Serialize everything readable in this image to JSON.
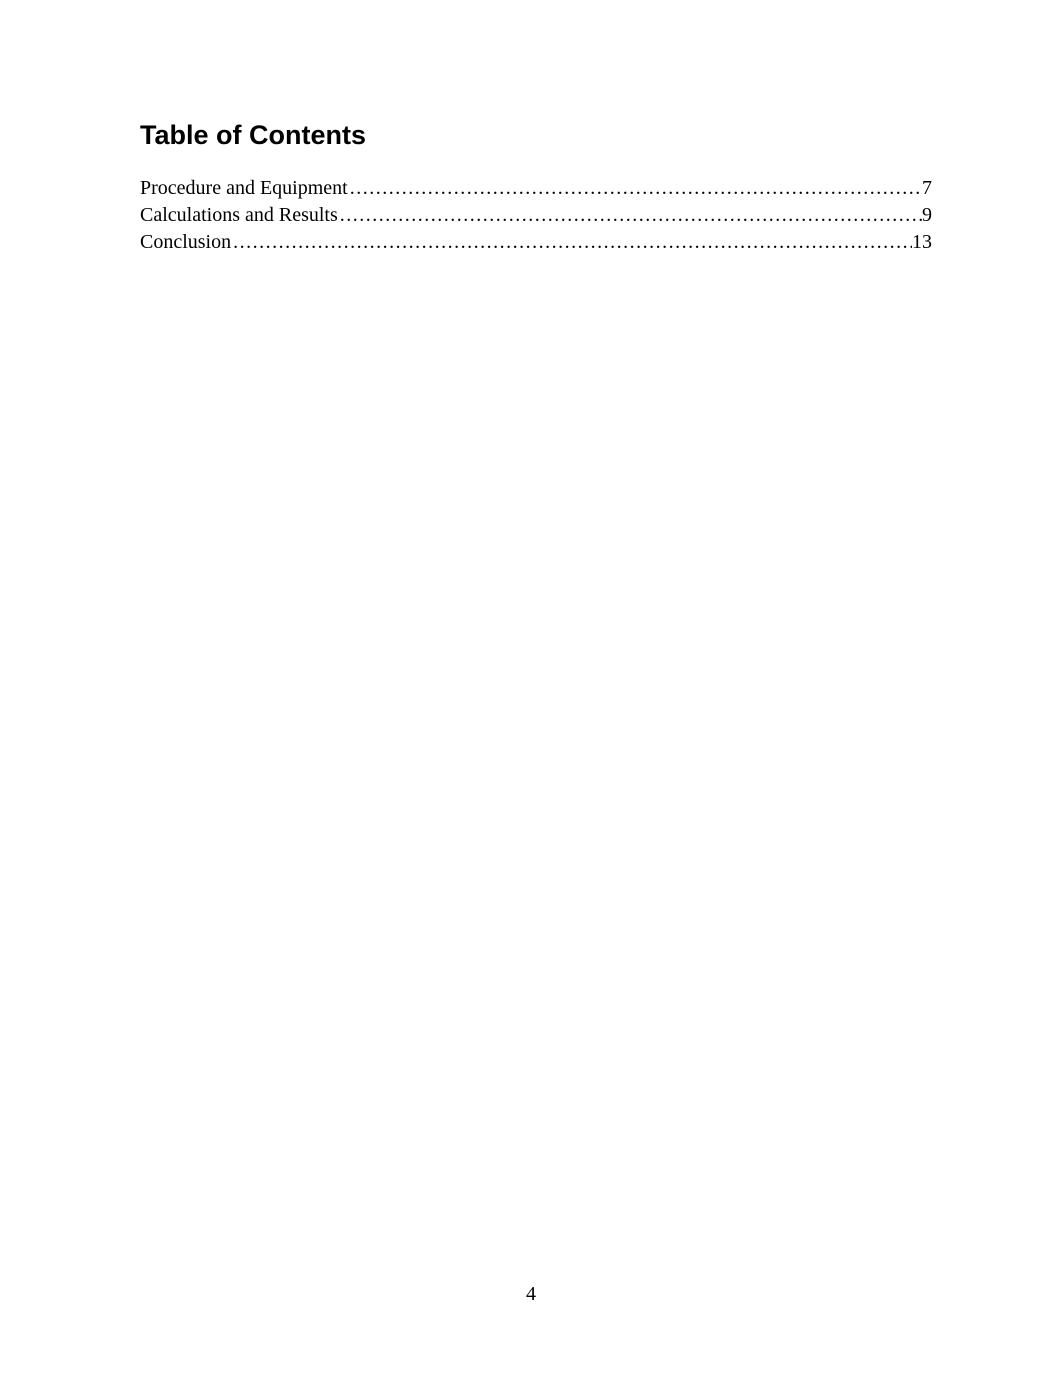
{
  "toc": {
    "title": "Table of Contents",
    "title_font_family": "Arial, Helvetica, sans-serif",
    "title_font_size_pt": 20,
    "title_font_weight": "bold",
    "entry_font_family": "Times New Roman, Times, serif",
    "entry_font_size_pt": 15,
    "text_color": "#000000",
    "background_color": "#ffffff",
    "leader_char": ".",
    "entries": [
      {
        "label": "Procedure and Equipment",
        "page": "7"
      },
      {
        "label": "Calculations and Results",
        "page": "9"
      },
      {
        "label": "Conclusion",
        "page": "13"
      }
    ]
  },
  "page_number": "4"
}
